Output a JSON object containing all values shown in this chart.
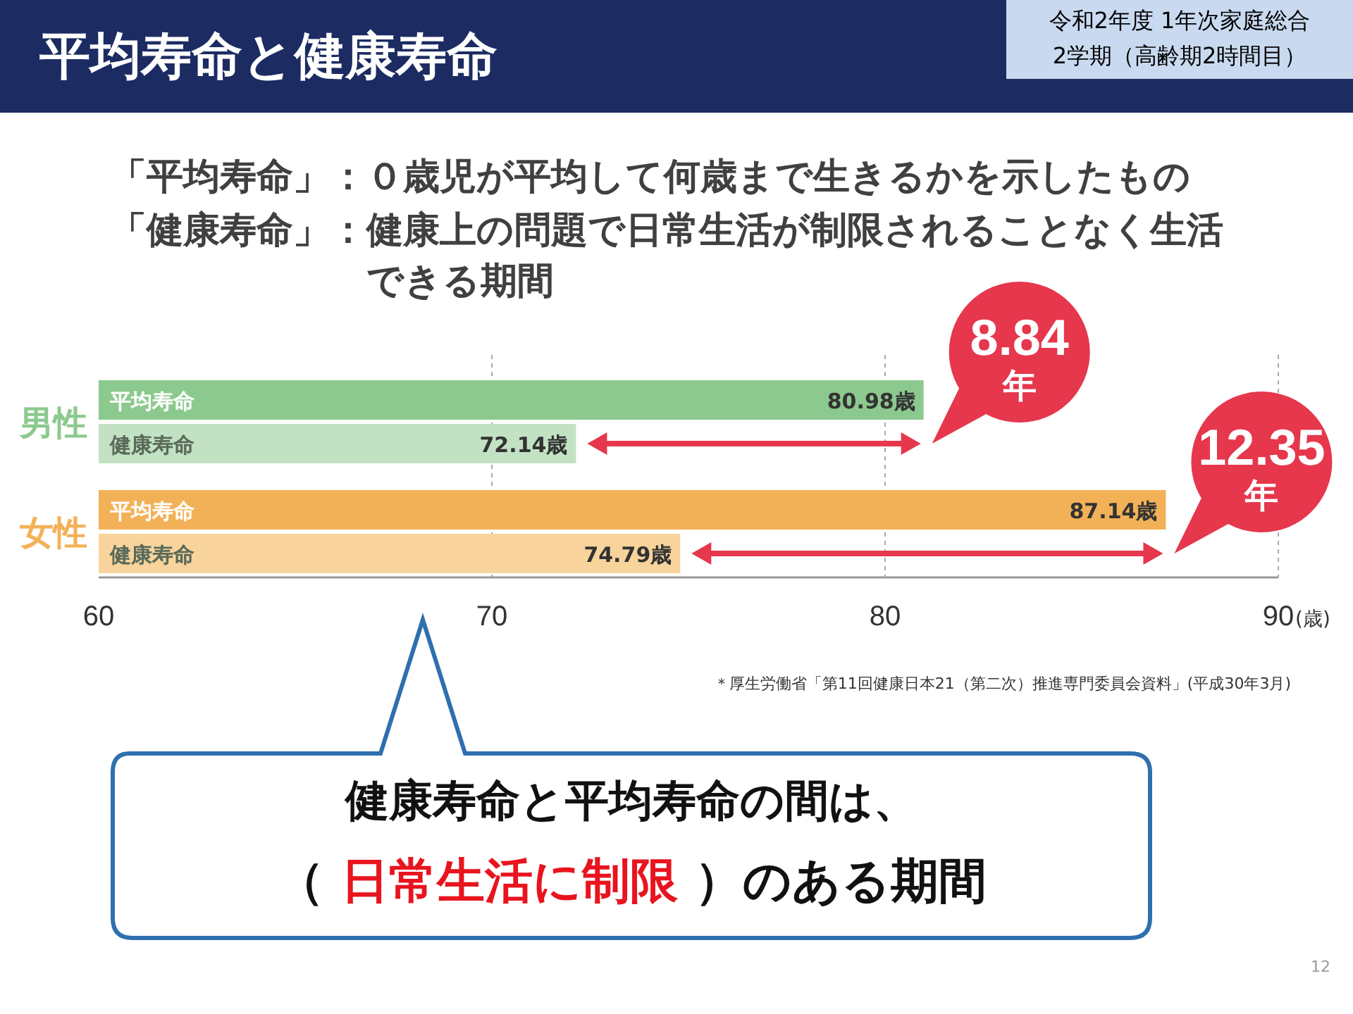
{
  "chart_data": {
    "type": "bar",
    "orientation": "horizontal",
    "title": "平均寿命と健康寿命",
    "categories": [
      "平均寿命",
      "健康寿命",
      "平均寿命",
      "健康寿命"
    ],
    "series": [
      {
        "name": "男性",
        "colors": [
          "#8cc98e",
          "#c2e2c3",
          null,
          null
        ],
        "values": [
          80.98,
          72.14,
          null,
          null
        ],
        "value_labels": [
          "80.98歳",
          "72.14歳",
          null,
          null
        ]
      },
      {
        "name": "女性",
        "colors": [
          null,
          null,
          "#f3b157",
          "#f8d49c"
        ],
        "values": [
          null,
          null,
          87.14,
          74.79
        ],
        "value_labels": [
          null,
          null,
          "87.14歳",
          "74.79歳"
        ]
      }
    ],
    "xlim": [
      60,
      90
    ],
    "xticks": [
      60,
      70,
      80,
      90
    ],
    "xlabel": "(歳)",
    "grid": "x",
    "annotations": [
      "令和2年度 1年次家庭総合",
      "2学期（高齢期2時間目）",
      "「平均寿命」：０歳児が平均して何歳まで生きるかを示したもの",
      "「健康寿命」：健康上の問題で日常生活が制限されることなく生活できる期間",
      "8.84年",
      "12.35年",
      "＊厚生労働省「第11回健康日本21（第二次）推進専門委員会資料」(平成30年3月)",
      "健康寿命と平均寿命の間は、",
      "（ **日常生活に制限** ）のある期間",
      "12"
    ]
  }
}
